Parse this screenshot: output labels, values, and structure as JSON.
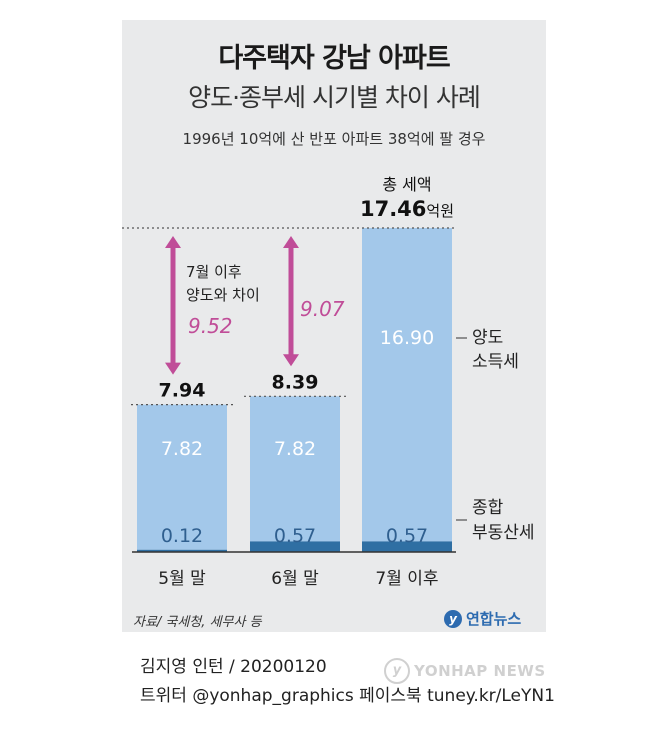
{
  "header": {
    "title": "다주택자 강남 아파트",
    "subtitle": "양도·종부세 시기별 차이 사례",
    "note": "1996년 10억에 산 반포 아파트 38억에 팔 경우"
  },
  "chart_data": {
    "type": "bar",
    "stacked": true,
    "categories": [
      "5월 말",
      "6월 말",
      "7월 이후"
    ],
    "series": [
      {
        "name": "종합\n부동산세",
        "values": [
          0.12,
          0.57,
          0.57
        ],
        "labels": [
          "0.12",
          "0.57",
          "0.57"
        ],
        "color": "#2f6fa3"
      },
      {
        "name": "양도\n소득세",
        "values": [
          7.82,
          7.82,
          16.9
        ],
        "labels": [
          "7.82",
          "7.82",
          "16.90"
        ],
        "color": "#a3c8ea"
      }
    ],
    "totals": [
      "7.94",
      "8.39",
      "17.46"
    ],
    "total_values": [
      7.94,
      8.39,
      17.46
    ],
    "total_title": "총 세액",
    "total_unit": "억원",
    "differences": [
      {
        "category": "5월 말",
        "value": "9.52",
        "label_line1": "7월 이후",
        "label_line2": "양도와 차이"
      },
      {
        "category": "6월 말",
        "value": "9.07"
      }
    ],
    "legend_right": {
      "upper_line1": "양도",
      "upper_line2": "소득세",
      "lower_line1": "종합",
      "lower_line2": "부동산세"
    },
    "ylim": [
      0,
      18
    ],
    "arrow_color": "#c04d98"
  },
  "footer": {
    "source": "자료/ 국세청, 세무사 등",
    "logo_text": "연합뉴스",
    "logo_mark": "y",
    "credit": "김지영 인턴 / 20200120",
    "social": "트위터 @yonhap_graphics  페이스북 tuney.kr/LeYN1",
    "watermark": "YONHAP NEWS"
  }
}
